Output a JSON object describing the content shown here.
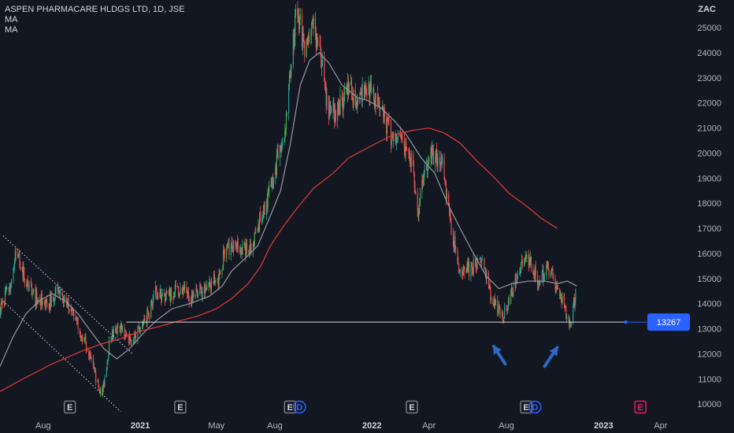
{
  "header": {
    "symbol_line": "ASPEN PHARMACARE HLDGS LTD, 1D, JSE",
    "indicators": [
      "MA",
      "MA"
    ]
  },
  "colors": {
    "background": "#131722",
    "up": "#26a69a",
    "up_bright": "#4caf50",
    "down": "#ef5350",
    "ma_fast": "#9598a1",
    "ma_slow": "#e53935",
    "support_line": "#d1d4dc",
    "price_tag": "#2962ff",
    "arrow": "#2f67c5",
    "event_earnings": "#787b86",
    "event_dividend": "#2962ff",
    "event_future": "#e91e63"
  },
  "chart_data": {
    "type": "candlestick",
    "title": "ASPEN PHARMACARE HLDGS LTD, 1D, JSE",
    "currency_label": "ZAC",
    "y_ticks": [
      10000,
      11000,
      12000,
      13000,
      14000,
      15000,
      16000,
      17000,
      18000,
      19000,
      20000,
      21000,
      22000,
      23000,
      24000,
      25000
    ],
    "ylim": [
      9600,
      26100
    ],
    "x_ticks": [
      {
        "label": "Aug",
        "date": "2020-08-01",
        "bold": false
      },
      {
        "label": "2021",
        "date": "2021-01-01",
        "bold": true
      },
      {
        "label": "May",
        "date": "2021-05-01",
        "bold": false
      },
      {
        "label": "Aug",
        "date": "2021-08-01",
        "bold": false
      },
      {
        "label": "2022",
        "date": "2022-01-01",
        "bold": true
      },
      {
        "label": "Apr",
        "date": "2022-04-01",
        "bold": false
      },
      {
        "label": "Aug",
        "date": "2022-08-01",
        "bold": false
      },
      {
        "label": "2023",
        "date": "2023-01-01",
        "bold": true
      },
      {
        "label": "Apr",
        "date": "2023-04-01",
        "bold": false
      }
    ],
    "xlim": [
      "2020-05-25",
      "2023-05-22"
    ],
    "price_path": [
      [
        "2020-05-25",
        13800
      ],
      [
        "2020-06-10",
        14700
      ],
      [
        "2020-06-20",
        16100
      ],
      [
        "2020-07-05",
        14900
      ],
      [
        "2020-07-20",
        14200
      ],
      [
        "2020-08-10",
        14000
      ],
      [
        "2020-08-25",
        14700
      ],
      [
        "2020-09-10",
        13800
      ],
      [
        "2020-09-25",
        13200
      ],
      [
        "2020-10-10",
        12200
      ],
      [
        "2020-10-25",
        10800
      ],
      [
        "2020-11-02",
        10400
      ],
      [
        "2020-11-15",
        12700
      ],
      [
        "2020-12-01",
        13000
      ],
      [
        "2020-12-15",
        12600
      ],
      [
        "2021-01-01",
        12900
      ],
      [
        "2021-01-15",
        13700
      ],
      [
        "2021-01-25",
        14500
      ],
      [
        "2021-02-10",
        14200
      ],
      [
        "2021-03-01",
        14600
      ],
      [
        "2021-03-20",
        14300
      ],
      [
        "2021-04-10",
        14600
      ],
      [
        "2021-05-05",
        15000
      ],
      [
        "2021-05-15",
        16200
      ],
      [
        "2021-06-05",
        16300
      ],
      [
        "2021-06-25",
        16100
      ],
      [
        "2021-07-10",
        17500
      ],
      [
        "2021-07-25",
        18500
      ],
      [
        "2021-08-05",
        19700
      ],
      [
        "2021-08-15",
        20500
      ],
      [
        "2021-08-25",
        23000
      ],
      [
        "2021-09-05",
        25900
      ],
      [
        "2021-09-15",
        24200
      ],
      [
        "2021-10-01",
        25000
      ],
      [
        "2021-10-15",
        23500
      ],
      [
        "2021-10-25",
        21500
      ],
      [
        "2021-11-10",
        21800
      ],
      [
        "2021-11-25",
        22500
      ],
      [
        "2021-12-10",
        22200
      ],
      [
        "2021-12-25",
        22600
      ],
      [
        "2022-01-15",
        21800
      ],
      [
        "2022-02-01",
        20600
      ],
      [
        "2022-02-20",
        20300
      ],
      [
        "2022-03-05",
        19600
      ],
      [
        "2022-03-15",
        17500
      ],
      [
        "2022-03-25",
        19400
      ],
      [
        "2022-04-05",
        20000
      ],
      [
        "2022-04-20",
        19800
      ],
      [
        "2022-05-05",
        17200
      ],
      [
        "2022-05-20",
        15200
      ],
      [
        "2022-06-05",
        15400
      ],
      [
        "2022-06-25",
        15600
      ],
      [
        "2022-07-10",
        14100
      ],
      [
        "2022-07-25",
        13500
      ],
      [
        "2022-08-05",
        14000
      ],
      [
        "2022-08-20",
        15400
      ],
      [
        "2022-09-05",
        15800
      ],
      [
        "2022-09-20",
        14900
      ],
      [
        "2022-10-05",
        15500
      ],
      [
        "2022-10-20",
        14700
      ],
      [
        "2022-11-01",
        13800
      ],
      [
        "2022-11-10",
        13200
      ],
      [
        "2022-11-20",
        14700
      ]
    ],
    "ma_fast": [
      [
        "2020-05-25",
        11500
      ],
      [
        "2020-06-15",
        12700
      ],
      [
        "2020-07-05",
        13600
      ],
      [
        "2020-07-25",
        14100
      ],
      [
        "2020-08-15",
        14400
      ],
      [
        "2020-09-05",
        14100
      ],
      [
        "2020-09-25",
        13600
      ],
      [
        "2020-10-15",
        12900
      ],
      [
        "2020-11-05",
        12200
      ],
      [
        "2020-11-25",
        11800
      ],
      [
        "2020-12-15",
        12200
      ],
      [
        "2021-01-05",
        12800
      ],
      [
        "2021-01-25",
        13300
      ],
      [
        "2021-02-20",
        13800
      ],
      [
        "2021-03-20",
        14000
      ],
      [
        "2021-04-20",
        14300
      ],
      [
        "2021-05-10",
        14700
      ],
      [
        "2021-05-25",
        15300
      ],
      [
        "2021-06-15",
        15800
      ],
      [
        "2021-07-05",
        16300
      ],
      [
        "2021-07-25",
        17500
      ],
      [
        "2021-08-10",
        18500
      ],
      [
        "2021-08-25",
        20300
      ],
      [
        "2021-09-10",
        22700
      ],
      [
        "2021-09-25",
        23700
      ],
      [
        "2021-10-10",
        24000
      ],
      [
        "2021-10-25",
        23600
      ],
      [
        "2021-11-15",
        22700
      ],
      [
        "2021-12-10",
        22200
      ],
      [
        "2021-12-25",
        22100
      ],
      [
        "2022-01-15",
        21800
      ],
      [
        "2022-02-05",
        21300
      ],
      [
        "2022-02-25",
        20700
      ],
      [
        "2022-03-20",
        19800
      ],
      [
        "2022-04-10",
        19200
      ],
      [
        "2022-04-30",
        18000
      ],
      [
        "2022-05-20",
        17000
      ],
      [
        "2022-06-10",
        16000
      ],
      [
        "2022-06-30",
        15100
      ],
      [
        "2022-07-20",
        14600
      ],
      [
        "2022-08-10",
        14800
      ],
      [
        "2022-09-05",
        14900
      ],
      [
        "2022-09-30",
        14900
      ],
      [
        "2022-10-20",
        14800
      ],
      [
        "2022-11-05",
        14900
      ],
      [
        "2022-11-20",
        14700
      ]
    ],
    "ma_slow": [
      [
        "2020-05-25",
        10500
      ],
      [
        "2020-06-30",
        11000
      ],
      [
        "2020-08-15",
        11600
      ],
      [
        "2020-09-30",
        12100
      ],
      [
        "2020-11-01",
        12400
      ],
      [
        "2020-12-01",
        12600
      ],
      [
        "2021-01-01",
        12900
      ],
      [
        "2021-02-01",
        13100
      ],
      [
        "2021-03-01",
        13300
      ],
      [
        "2021-04-01",
        13500
      ],
      [
        "2021-05-01",
        13800
      ],
      [
        "2021-05-25",
        14200
      ],
      [
        "2021-06-20",
        14800
      ],
      [
        "2021-07-10",
        15500
      ],
      [
        "2021-07-25",
        16300
      ],
      [
        "2021-08-15",
        17100
      ],
      [
        "2021-09-05",
        17800
      ],
      [
        "2021-10-01",
        18600
      ],
      [
        "2021-11-01",
        19200
      ],
      [
        "2021-11-25",
        19800
      ],
      [
        "2022-01-01",
        20300
      ],
      [
        "2022-02-01",
        20700
      ],
      [
        "2022-03-05",
        20900
      ],
      [
        "2022-04-01",
        21000
      ],
      [
        "2022-04-25",
        20800
      ],
      [
        "2022-05-20",
        20400
      ],
      [
        "2022-06-15",
        19700
      ],
      [
        "2022-07-10",
        19100
      ],
      [
        "2022-08-05",
        18400
      ],
      [
        "2022-09-01",
        17900
      ],
      [
        "2022-09-25",
        17400
      ],
      [
        "2022-10-20",
        17000
      ]
    ],
    "support": {
      "value": 13267,
      "from": "2020-12-10",
      "to": "2023-02-05",
      "label": "13267"
    },
    "channel": {
      "upper": [
        [
          "2020-05-30",
          16700
        ],
        [
          "2020-12-20",
          12000
        ]
      ],
      "lower": [
        [
          "2020-05-30",
          14100
        ],
        [
          "2020-12-01",
          9700
        ]
      ]
    },
    "arrows": [
      {
        "from": [
          "2022-07-30",
          11600
        ],
        "to": [
          "2022-07-12",
          12300
        ]
      },
      {
        "from": [
          "2022-09-30",
          11500
        ],
        "to": [
          "2022-10-20",
          12250
        ]
      }
    ],
    "events": [
      {
        "type": "earnings",
        "label": "E",
        "date": "2020-09-12"
      },
      {
        "type": "earnings",
        "label": "E",
        "date": "2021-03-05"
      },
      {
        "type": "earnings",
        "label": "E",
        "date": "2021-08-25"
      },
      {
        "type": "dividend",
        "label": "D",
        "date": "2021-09-09"
      },
      {
        "type": "earnings",
        "label": "E",
        "date": "2022-03-05"
      },
      {
        "type": "earnings",
        "label": "E",
        "date": "2022-09-01"
      },
      {
        "type": "dividend",
        "label": "D",
        "date": "2022-09-15"
      },
      {
        "type": "earnings_future",
        "label": "E",
        "date": "2023-02-28"
      }
    ]
  }
}
